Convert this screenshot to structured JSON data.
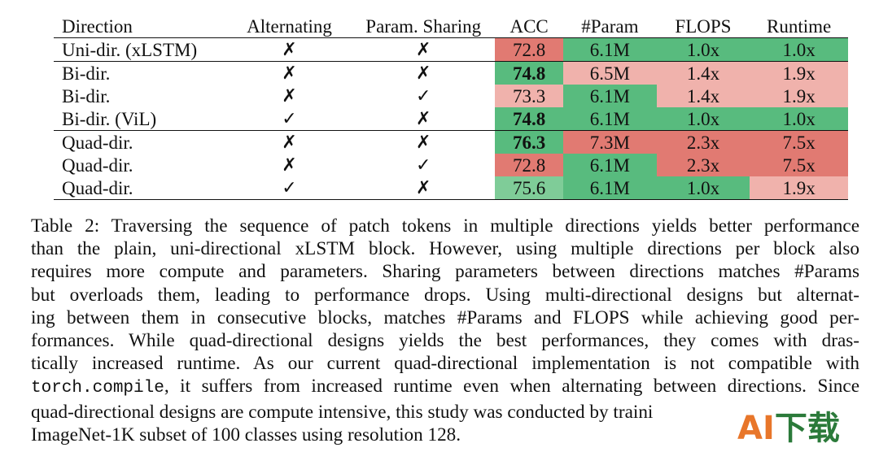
{
  "table": {
    "headers": [
      "Direction",
      "Alternating",
      "Param. Sharing",
      "ACC",
      "#Param",
      "FLOPS",
      "Runtime"
    ],
    "rows": [
      {
        "direction": "Uni-dir. (xLSTM)",
        "alternating": "✗",
        "sharing": "✗",
        "acc": "72.8",
        "param": "6.1M",
        "flops": "1.0x",
        "runtime": "1.0x"
      },
      {
        "direction": "Bi-dir.",
        "alternating": "✗",
        "sharing": "✗",
        "acc": "74.8",
        "param": "6.5M",
        "flops": "1.4x",
        "runtime": "1.9x"
      },
      {
        "direction": "Bi-dir.",
        "alternating": "✗",
        "sharing": "✓",
        "acc": "73.3",
        "param": "6.1M",
        "flops": "1.4x",
        "runtime": "1.9x"
      },
      {
        "direction": "Bi-dir. (ViL)",
        "alternating": "✓",
        "sharing": "✗",
        "acc": "74.8",
        "param": "6.1M",
        "flops": "1.0x",
        "runtime": "1.0x"
      },
      {
        "direction": "Quad-dir.",
        "alternating": "✗",
        "sharing": "✗",
        "acc": "76.3",
        "param": "7.3M",
        "flops": "2.3x",
        "runtime": "7.5x"
      },
      {
        "direction": "Quad-dir.",
        "alternating": "✗",
        "sharing": "✓",
        "acc": "72.8",
        "param": "6.1M",
        "flops": "2.3x",
        "runtime": "7.5x"
      },
      {
        "direction": "Quad-dir.",
        "alternating": "✓",
        "sharing": "✗",
        "acc": "75.6",
        "param": "6.1M",
        "flops": "1.0x",
        "runtime": "1.9x"
      }
    ],
    "colors": {
      "strong_green": "#58bb7e",
      "light_green": "#7fcc98",
      "strong_red": "#e17a72",
      "light_red": "#f0b2ac"
    }
  },
  "caption": {
    "lines": [
      "Table 2: Traversing the sequence of patch tokens in multiple directions yields better performance",
      "than the plain, uni-directional xLSTM block.  However, using multiple directions per block also",
      "requires more compute and parameters.  Sharing parameters between directions matches #Params",
      "but overloads them, leading to performance drops.  Using multi-directional designs but alternat-",
      "ing between them in consecutive blocks, matches #Params and FLOPS while achieving good per-",
      "formances.  While quad-directional designs yields the best performances, they comes with dras-",
      "tically increased runtime.  As our current quad-directional implementation is not compatible with"
    ],
    "code": "torch.compile",
    "line8_rest": ", it suffers from increased runtime even when alternating between directions. Since",
    "line9": "quad-directional designs are compute intensive, this study was conducted by traini",
    "line10": "ImageNet-1K subset of 100 classes using resolution 128."
  },
  "watermark": {
    "part1": "AI",
    "part2": "下载"
  }
}
